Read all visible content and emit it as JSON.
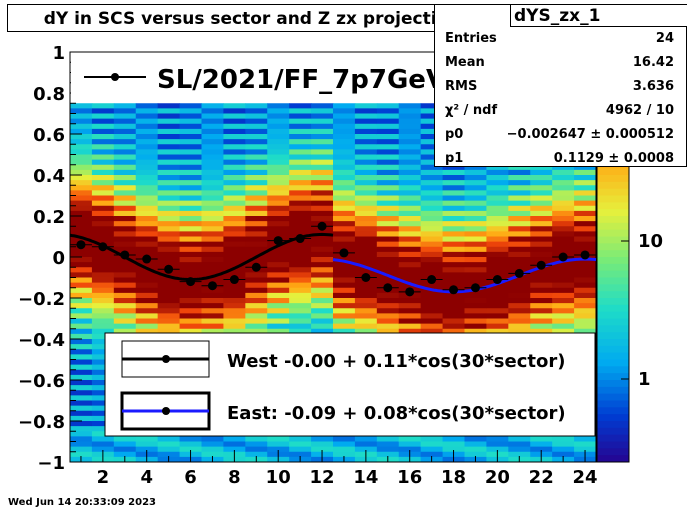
{
  "title": "dY in SCS versus sector and Z zx projection",
  "stats": {
    "name": "dYS_zx_1",
    "rows": [
      {
        "key": "Entries",
        "value": "24"
      },
      {
        "key": "Mean",
        "value": "16.42"
      },
      {
        "key": "RMS",
        "value": "3.636"
      },
      {
        "key": "χ² / ndf",
        "value": "4962 / 10"
      },
      {
        "key": "p0",
        "value": "−0.002647 ± 0.000512"
      },
      {
        "key": "p1",
        "value": "0.1129 ± 0.0008"
      }
    ]
  },
  "timestamp": "Wed Jun 14 20:33:09 2023",
  "legend_top": {
    "label": "SL/2021/FF_7p7GeV"
  },
  "legend_bottom": {
    "west": "West -0.00 +  0.11*cos(30*sector)",
    "east": "East: -0.09 +  0.08*cos(30*sector)"
  },
  "colors": {
    "west": "#000000",
    "east": "#1a1aff"
  },
  "chart_data": {
    "type": "scatter",
    "xlim": [
      0.5,
      24.5
    ],
    "ylim": [
      -1,
      1
    ],
    "x_ticks": [
      2,
      4,
      6,
      8,
      10,
      12,
      14,
      16,
      18,
      20,
      22,
      24
    ],
    "y_ticks": [
      -1,
      -0.8,
      -0.6,
      -0.4,
      -0.2,
      0,
      0.2,
      0.4,
      0.6,
      0.8,
      1
    ],
    "colorbar_ticks": [
      "1",
      "10"
    ],
    "series": [
      {
        "name": "West",
        "x": [
          1,
          2,
          3,
          4,
          5,
          6,
          7,
          8,
          9,
          10,
          11,
          12
        ],
        "y": [
          0.06,
          0.05,
          0.01,
          -0.01,
          -0.06,
          -0.12,
          -0.14,
          -0.11,
          -0.05,
          0.08,
          0.09,
          0.15
        ],
        "fit": {
          "p0": -0.0,
          "p1": 0.11,
          "range": [
            0.5,
            12.5
          ]
        }
      },
      {
        "name": "East",
        "x": [
          13,
          14,
          15,
          16,
          17,
          18,
          19,
          20,
          21,
          22,
          23,
          24
        ],
        "y": [
          0.02,
          -0.1,
          -0.15,
          -0.17,
          -0.11,
          -0.16,
          -0.15,
          -0.11,
          -0.08,
          -0.04,
          0.0,
          0.01
        ],
        "fit": {
          "p0": -0.09,
          "p1": 0.08,
          "range": [
            12.5,
            24.5
          ]
        }
      }
    ]
  }
}
